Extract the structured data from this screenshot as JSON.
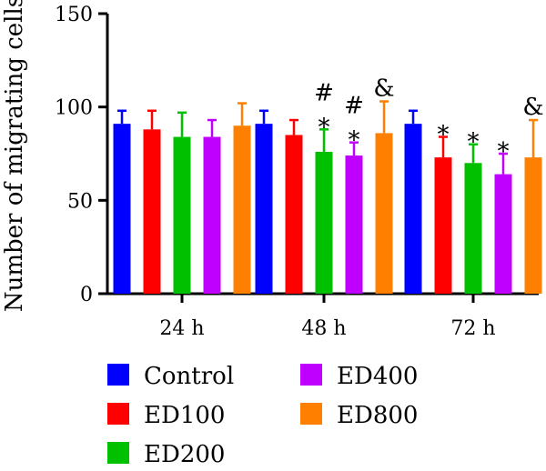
{
  "chart_data": {
    "type": "bar",
    "ylabel": "Number of migrating cells",
    "xlabel": "",
    "ylim": [
      0,
      150
    ],
    "yticks": [
      0,
      50,
      100,
      150
    ],
    "categories": [
      "24 h",
      "48 h",
      "72 h"
    ],
    "series": [
      {
        "name": "Control",
        "color": "#0000ff",
        "values": [
          91,
          91,
          91
        ],
        "errors": [
          7,
          7,
          7
        ],
        "annotations": [
          "",
          "",
          ""
        ]
      },
      {
        "name": "ED100",
        "color": "#ff0000",
        "values": [
          88,
          85,
          73
        ],
        "errors": [
          10,
          8,
          11
        ],
        "annotations": [
          "",
          "",
          "*"
        ]
      },
      {
        "name": "ED200",
        "color": "#00c000",
        "values": [
          84,
          76,
          70
        ],
        "errors": [
          13,
          12,
          10
        ],
        "annotations": [
          "",
          "#\n*",
          "*"
        ]
      },
      {
        "name": "ED400",
        "color": "#c000ff",
        "values": [
          84,
          74,
          64
        ],
        "errors": [
          9,
          7,
          11
        ],
        "annotations": [
          "",
          "#\n*",
          "*"
        ]
      },
      {
        "name": "ED800",
        "color": "#ff8000",
        "values": [
          90,
          86,
          73
        ],
        "errors": [
          12,
          17,
          20
        ],
        "annotations": [
          "",
          "&",
          "&"
        ]
      }
    ],
    "legend_position": "bottom",
    "grid": false
  }
}
